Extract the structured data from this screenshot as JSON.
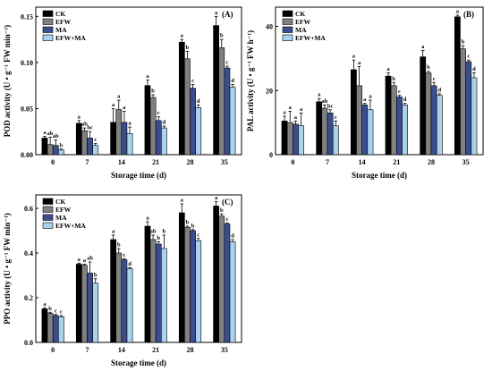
{
  "colors": {
    "CK": "#000000",
    "EFW": "#808080",
    "MA": "#3b4d8f",
    "EFW+MA": "#a9d2ec"
  },
  "series_names": [
    "CK",
    "EFW",
    "MA",
    "EFW+MA"
  ],
  "chart_data": [
    {
      "type": "bar",
      "panel": "(A)",
      "xlabel": "Storage time (d)",
      "ylabel": "POD activity (U • g⁻¹ FW min⁻¹)",
      "categories": [
        "0",
        "7",
        "14",
        "21",
        "28",
        "35"
      ],
      "ylim": [
        0,
        0.16
      ],
      "yticks": [
        0.0,
        0.05,
        0.1,
        0.15
      ],
      "ytick_labels": [
        "0.00",
        "0.05",
        "0.10",
        "0.15"
      ],
      "series": [
        {
          "name": "CK",
          "values": [
            0.018,
            0.034,
            0.035,
            0.075,
            0.122,
            0.14
          ],
          "errors": [
            0.002,
            0.003,
            0.015,
            0.006,
            0.003,
            0.01
          ],
          "letters": [
            "a",
            "a",
            "a",
            "a",
            "a",
            "a"
          ]
        },
        {
          "name": "EFW",
          "values": [
            0.011,
            0.026,
            0.049,
            0.062,
            0.104,
            0.116
          ],
          "errors": [
            0.008,
            0.003,
            0.01,
            0.003,
            0.008,
            0.009
          ],
          "letters": [
            "ab",
            "ab",
            "a",
            "b",
            "b",
            "b"
          ]
        },
        {
          "name": "MA",
          "values": [
            0.01,
            0.018,
            0.035,
            0.037,
            0.072,
            0.094
          ],
          "errors": [
            0.006,
            0.007,
            0.012,
            0.004,
            0.004,
            0.002
          ],
          "letters": [
            "ab",
            "bc",
            "a",
            "c",
            "c",
            "c"
          ]
        },
        {
          "name": "EFW+MA",
          "values": [
            0.005,
            0.01,
            0.023,
            0.029,
            0.051,
            0.073
          ],
          "errors": [
            0.001,
            0.002,
            0.007,
            0.002,
            0.003,
            0.003
          ],
          "letters": [
            "b",
            "c",
            "a",
            "d",
            "d",
            "d"
          ]
        }
      ]
    },
    {
      "type": "bar",
      "panel": "(B)",
      "xlabel": "Storage time (d)",
      "ylabel": "PAL activity (U • g⁻¹ FW h⁻¹)",
      "categories": [
        "0",
        "7",
        "14",
        "21",
        "28",
        "35"
      ],
      "ylim": [
        0,
        46
      ],
      "yticks": [
        0,
        20,
        40
      ],
      "ytick_labels": [
        "0",
        "20",
        "40"
      ],
      "series": [
        {
          "name": "CK",
          "values": [
            10.5,
            16.5,
            26.5,
            24.5,
            30.5,
            43
          ],
          "errors": [
            1.5,
            1.0,
            3.0,
            1.0,
            2.0,
            0.5
          ],
          "letters": [
            "a",
            "a",
            "a",
            "a",
            "a",
            "a"
          ]
        },
        {
          "name": "EFW",
          "values": [
            10,
            14.5,
            21.5,
            21.5,
            25.5,
            33
          ],
          "errors": [
            3.5,
            1.0,
            6.0,
            1.0,
            0.5,
            1.0
          ],
          "letters": [
            "a",
            "ab",
            "a",
            "b",
            "b",
            "b"
          ]
        },
        {
          "name": "MA",
          "values": [
            9.5,
            13,
            15.5,
            18,
            21.5,
            29
          ],
          "errors": [
            1.0,
            1.0,
            0.5,
            0.5,
            1.0,
            0.5
          ],
          "letters": [
            "a",
            "bc",
            "a",
            "c",
            "c",
            "c"
          ]
        },
        {
          "name": "EFW+MA",
          "values": [
            9,
            9,
            14,
            15.5,
            18.5,
            24
          ],
          "errors": [
            4.0,
            1.5,
            3.0,
            0.5,
            0.5,
            1.5
          ],
          "letters": [
            "a",
            "c",
            "a",
            "d",
            "d",
            "d"
          ]
        }
      ]
    },
    {
      "type": "bar",
      "panel": "(C)",
      "xlabel": "Storage time (d)",
      "ylabel": "PPO activity (U • g⁻¹ FW min⁻¹)",
      "categories": [
        "0",
        "7",
        "14",
        "21",
        "28",
        "35"
      ],
      "ylim": [
        0,
        0.66
      ],
      "yticks": [
        0.0,
        0.2,
        0.4,
        0.6
      ],
      "ytick_labels": [
        "0.0",
        "0.2",
        "0.4",
        "0.6"
      ],
      "series": [
        {
          "name": "CK",
          "values": [
            0.15,
            0.35,
            0.46,
            0.52,
            0.58,
            0.61
          ],
          "errors": [
            0.005,
            0.005,
            0.02,
            0.02,
            0.04,
            0.02
          ],
          "letters": [
            "a",
            "a",
            "a",
            "a",
            "a",
            "a"
          ]
        },
        {
          "name": "EFW",
          "values": [
            0.13,
            0.345,
            0.4,
            0.46,
            0.515,
            0.565
          ],
          "errors": [
            0.005,
            0.005,
            0.02,
            0.02,
            0.005,
            0.01
          ],
          "letters": [
            "b",
            "a",
            "b",
            "ab",
            "b",
            "b"
          ]
        },
        {
          "name": "MA",
          "values": [
            0.12,
            0.31,
            0.37,
            0.44,
            0.5,
            0.53
          ],
          "errors": [
            0.005,
            0.05,
            0.005,
            0.01,
            0.005,
            0.005
          ],
          "letters": [
            "c",
            "ab",
            "c",
            "b",
            "b",
            "c"
          ]
        },
        {
          "name": "EFW+MA",
          "values": [
            0.115,
            0.265,
            0.33,
            0.42,
            0.455,
            0.45
          ],
          "errors": [
            0.005,
            0.02,
            0.005,
            0.06,
            0.01,
            0.01
          ],
          "letters": [
            "c",
            "b",
            "d",
            "b",
            "c",
            "d"
          ]
        }
      ]
    }
  ]
}
